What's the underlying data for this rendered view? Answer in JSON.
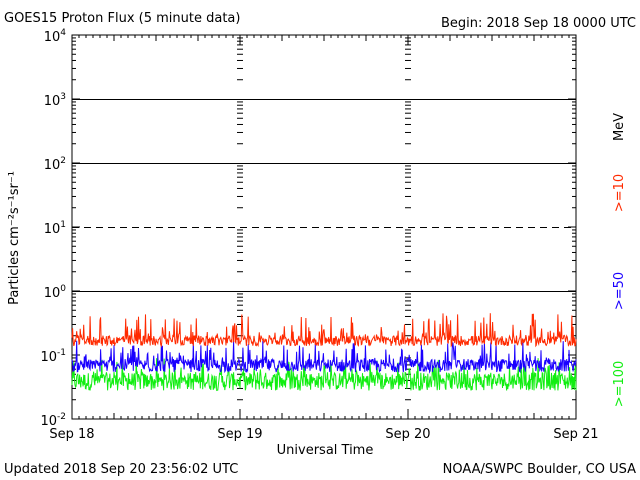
{
  "header": {
    "title": "GOES15 Proton Flux (5 minute data)",
    "begin": "Begin: 2018 Sep 18 0000 UTC"
  },
  "footer": {
    "updated": "Updated 2018 Sep 20 23:56:02 UTC",
    "source": "NOAA/SWPC Boulder, CO USA"
  },
  "colors": {
    "series_10": "#ff2a00",
    "series_50": "#1a00ff",
    "series_100": "#11ee11",
    "axis": "#000000",
    "background": "#ffffff"
  },
  "chart_data": {
    "type": "line",
    "title": "GOES15 Proton Flux (5 minute data)",
    "xlabel": "Universal Time",
    "ylabel": "Particles cm⁻²s⁻¹sr⁻¹",
    "yscale": "log",
    "ylim": [
      0.01,
      10000
    ],
    "xlim": [
      "2018-09-18",
      "2018-09-21"
    ],
    "x_ticks": [
      "Sep 18",
      "Sep 19",
      "Sep 20",
      "Sep 21"
    ],
    "y_ticks": [
      {
        "base": "10",
        "exp": "4"
      },
      {
        "base": "10",
        "exp": "3"
      },
      {
        "base": "10",
        "exp": "2"
      },
      {
        "base": "10",
        "exp": "1"
      },
      {
        "base": "10",
        "exp": "0"
      },
      {
        "base": "10",
        "exp": "-1"
      },
      {
        "base": "10",
        "exp": "-2"
      }
    ],
    "thresholds": [
      {
        "value": 1000,
        "style": "solid"
      },
      {
        "value": 100,
        "style": "solid"
      },
      {
        "value": 10,
        "style": "dashed"
      },
      {
        "value": 1,
        "style": "solid"
      }
    ],
    "energy_unit": "MeV",
    "series": [
      {
        "name": ">=10",
        "color": "#ff2a00",
        "typical": 0.17,
        "min": 0.13,
        "max": 0.45
      },
      {
        "name": ">=50",
        "color": "#1a00ff",
        "typical": 0.07,
        "min": 0.05,
        "max": 0.17
      },
      {
        "name": ">=100",
        "color": "#11ee11",
        "typical": 0.04,
        "min": 0.025,
        "max": 0.09
      }
    ]
  }
}
